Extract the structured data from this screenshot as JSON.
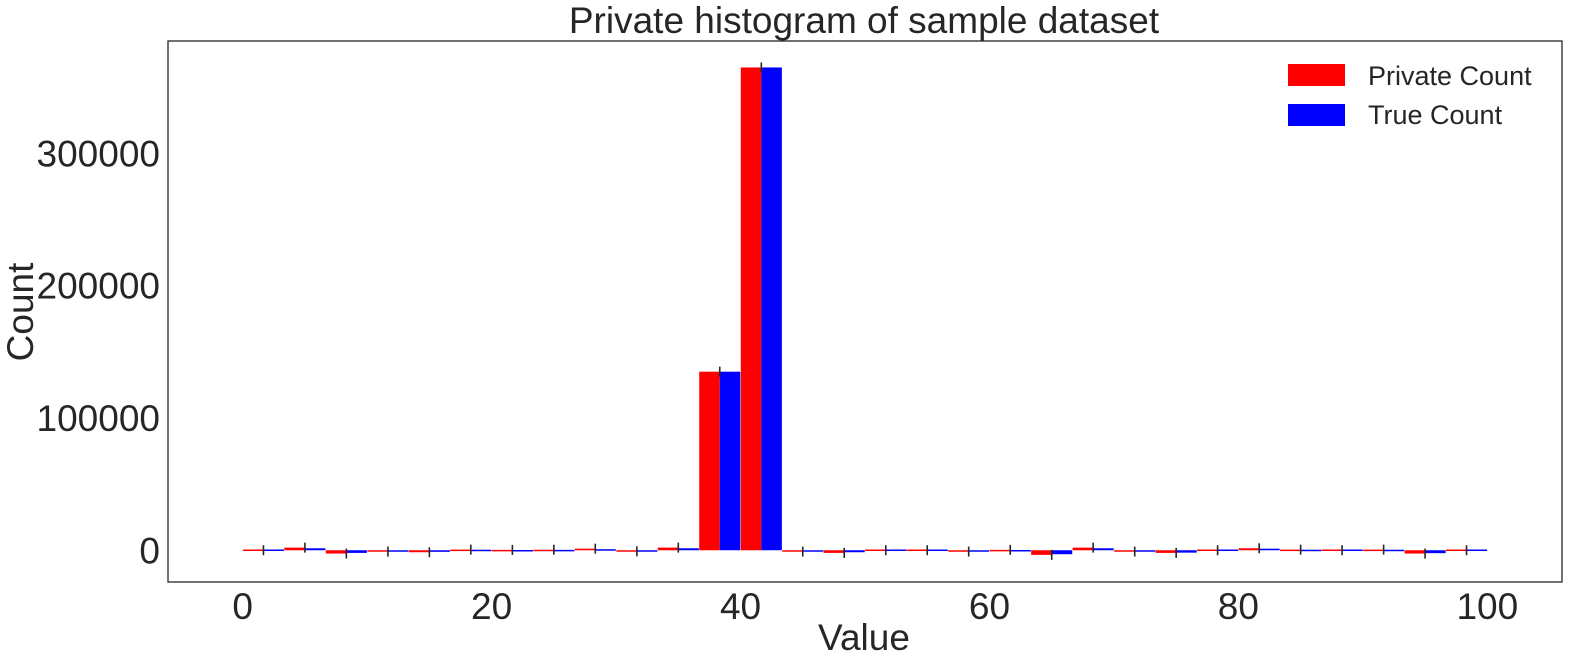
{
  "chart_data": {
    "type": "bar",
    "title": "Private histogram of sample dataset",
    "xlabel": "Value",
    "ylabel": "Count",
    "xlim": [
      -6,
      106
    ],
    "ylim": [
      -24000,
      385000
    ],
    "xticks": [
      0,
      20,
      40,
      60,
      80,
      100
    ],
    "yticks": [
      0,
      100000,
      200000,
      300000
    ],
    "grid": false,
    "legend_position": "top-right",
    "bin_width": 3.3,
    "series": [
      {
        "name": "Private Count",
        "color": "#ff0000",
        "x": [
          1.67,
          5.0,
          8.33,
          11.67,
          15.0,
          18.33,
          21.67,
          25.0,
          28.33,
          31.67,
          35.0,
          38.33,
          41.67,
          45.0,
          48.33,
          51.67,
          55.0,
          58.33,
          61.67,
          65.0,
          68.33,
          71.67,
          75.0,
          78.33,
          81.67,
          85.0,
          88.33,
          91.67,
          95.0,
          98.33
        ],
        "values": [
          0,
          2000,
          -2500,
          -1000,
          -1500,
          500,
          300,
          400,
          1200,
          -800,
          2000,
          135000,
          365000,
          -1000,
          -2000,
          0,
          0,
          -1000,
          300,
          -3500,
          2000,
          -1000,
          -2000,
          0,
          1500,
          500,
          0,
          500,
          -2500,
          0
        ]
      },
      {
        "name": "True Count",
        "color": "#0000ff",
        "x": [
          1.67,
          5.0,
          8.33,
          11.67,
          15.0,
          18.33,
          21.67,
          25.0,
          28.33,
          31.67,
          35.0,
          38.33,
          41.67,
          45.0,
          48.33,
          51.67,
          55.0,
          58.33,
          61.67,
          65.0,
          68.33,
          71.67,
          75.0,
          78.33,
          81.67,
          85.0,
          88.33,
          91.67,
          95.0,
          98.33
        ],
        "values": [
          0,
          1500,
          -2000,
          -500,
          -1200,
          400,
          200,
          300,
          800,
          -500,
          1500,
          135000,
          365000,
          -800,
          -1500,
          0,
          0,
          -800,
          200,
          -3000,
          1500,
          -800,
          -1800,
          0,
          1200,
          400,
          0,
          400,
          -2200,
          0
        ]
      }
    ]
  }
}
